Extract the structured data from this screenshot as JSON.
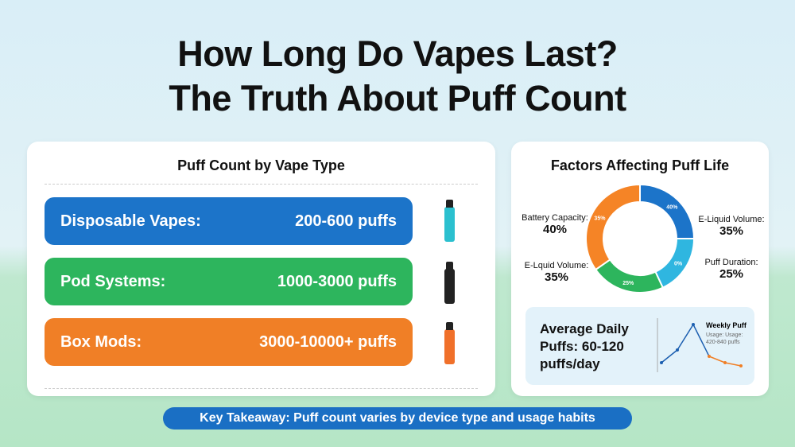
{
  "title": {
    "line1": "How Long Do Vapes Last?",
    "line2": "The Truth About Puff Count"
  },
  "left_panel": {
    "heading": "Puff Count by Vape Type",
    "items": [
      {
        "label": "Disposable Vapes:",
        "value": "200-600 puffs",
        "color": "#1c74c9",
        "device_color": "#2bc0cf"
      },
      {
        "label": "Pod Systems:",
        "value": "1000-3000 puffs",
        "color": "#2db55d",
        "device_color": "#222222"
      },
      {
        "label": "Box Mods:",
        "value": "3000-10000+ puffs",
        "color": "#f07f26",
        "device_color": "#f0702a"
      }
    ]
  },
  "right_panel": {
    "heading": "Factors Affecting Puff Life",
    "callouts": [
      {
        "label": "Battery Capacity:",
        "value": "40%"
      },
      {
        "label": "E-Liquid Volume:",
        "value": "35%"
      },
      {
        "label": "E-Lquid Volume:",
        "value": "35%"
      },
      {
        "label": "Puff Duration:",
        "value": "25%"
      }
    ],
    "average": {
      "text": "Average Daily Puffs: 60-120 puffs/day",
      "mini_title": "Weekly Puff",
      "mini_sub1": "Usage: Usage:",
      "mini_sub2": "420-840 puffs"
    }
  },
  "chart_data": [
    {
      "type": "pie",
      "title": "Factors Affecting Puff Life",
      "slices": [
        {
          "label": "40%",
          "value": 40,
          "color": "#1c74c9"
        },
        {
          "label": "0%",
          "value": 0,
          "color": "#2fb6e0"
        },
        {
          "label": "25%",
          "value": 25,
          "color": "#2db55d"
        },
        {
          "label": "35%",
          "value": 35,
          "color": "#f58426"
        }
      ]
    },
    {
      "type": "line",
      "series": [
        {
          "values": [
            1,
            3,
            7,
            2,
            1,
            0.5
          ],
          "colors": [
            "#1c5fb0",
            "#1c5fb0",
            "#1c5fb0",
            "#f07f26",
            "#f07f26"
          ]
        }
      ]
    }
  ],
  "takeaway": "Key Takeaway: Puff count varies by device type and usage habits"
}
